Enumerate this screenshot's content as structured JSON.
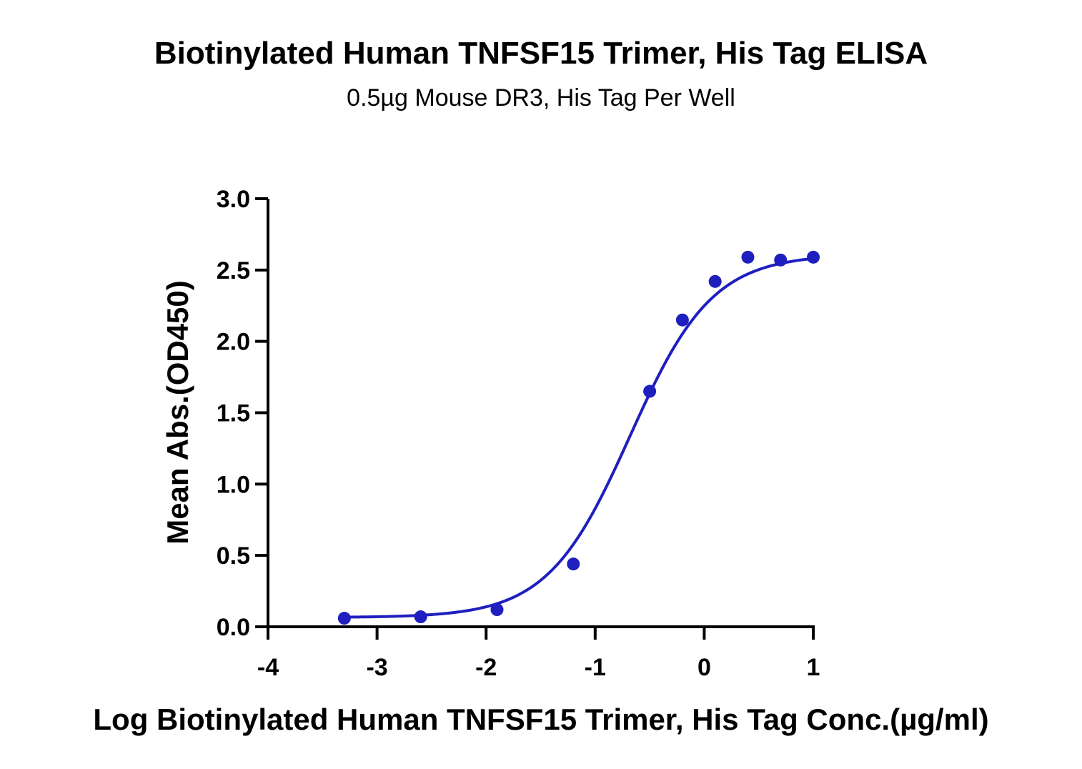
{
  "chart_data": {
    "type": "scatter",
    "title": "Biotinylated Human TNFSF15 Trimer, His Tag ELISA",
    "subtitle": "0.5µg Mouse DR3, His Tag Per Well",
    "xlabel": "Log Biotinylated Human TNFSF15 Trimer, His Tag Conc.(µg/ml)",
    "ylabel": "Mean Abs.(OD450)",
    "xlim": [
      -4,
      1
    ],
    "ylim": [
      0,
      3.0
    ],
    "x_ticks": [
      "-4",
      "-3",
      "-2",
      "-1",
      "0",
      "1"
    ],
    "y_ticks": [
      "0.0",
      "0.5",
      "1.0",
      "1.5",
      "2.0",
      "2.5",
      "3.0"
    ],
    "grid": false,
    "series": [
      {
        "color": "#1f1fbf",
        "x": [
          -3.3,
          -2.6,
          -1.9,
          -1.2,
          -0.5,
          -0.2,
          0.1,
          0.4,
          0.7,
          1.0
        ],
        "y": [
          0.06,
          0.07,
          0.12,
          0.44,
          1.65,
          2.15,
          2.42,
          2.59,
          2.57,
          2.59
        ],
        "fit": "four-parameter logistic"
      }
    ]
  }
}
